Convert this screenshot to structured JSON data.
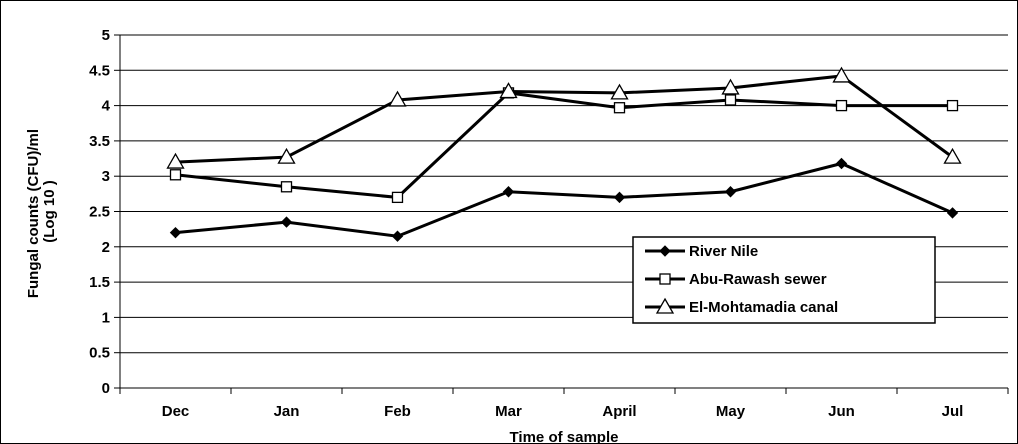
{
  "chart_data": {
    "type": "line",
    "title": "",
    "xlabel": "Time of sample",
    "ylabel_line1": "Fungal counts (CFU)/ml",
    "ylabel_line2": "(Log 10 )",
    "categories": [
      "Dec",
      "Jan",
      "Feb",
      "Mar",
      "April",
      "May",
      "Jun",
      "Jul"
    ],
    "ylim": [
      0,
      5
    ],
    "yticks": [
      "0",
      "0.5",
      "1",
      "1.5",
      "2",
      "2.5",
      "3",
      "3.5",
      "4",
      "4.5",
      "5"
    ],
    "grid": true,
    "legend_position": "bottom-right",
    "series": [
      {
        "name": "River Nile",
        "marker": "diamond",
        "color": "#000000",
        "values": [
          2.2,
          2.35,
          2.15,
          2.78,
          2.7,
          2.78,
          3.18,
          2.48
        ]
      },
      {
        "name": "Abu-Rawash sewer",
        "marker": "square",
        "color": "#000000",
        "values": [
          3.02,
          2.85,
          2.7,
          4.18,
          3.97,
          4.08,
          4.0,
          4.0
        ]
      },
      {
        "name": "El-Mohtamadia canal",
        "marker": "triangle",
        "color": "#000000",
        "values": [
          3.2,
          3.27,
          4.08,
          4.2,
          4.18,
          4.25,
          4.42,
          3.27
        ]
      }
    ]
  }
}
